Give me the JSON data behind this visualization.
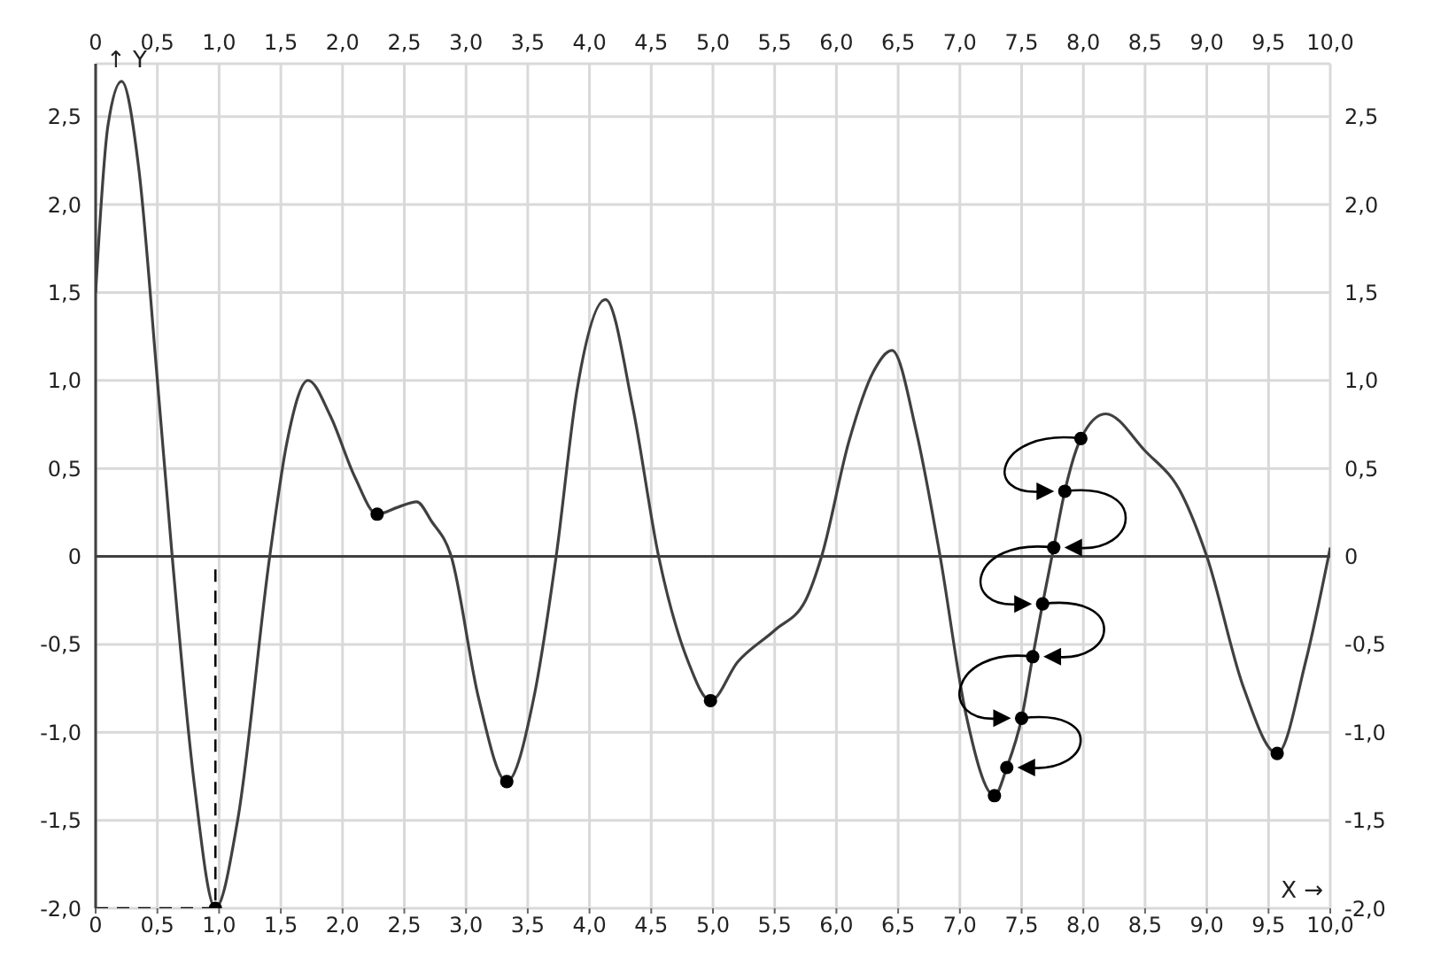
{
  "chart_data": {
    "type": "line",
    "xlabel": "X →",
    "ylabel": "↑ Y",
    "xlim": [
      0,
      10
    ],
    "ylim": [
      -2.0,
      2.8
    ],
    "xticks": [
      0,
      {
        "value": 0.5,
        "label": "0,5"
      },
      {
        "value": 1,
        "label": "1,0"
      },
      {
        "value": 1.5,
        "label": "1,5"
      },
      {
        "value": 2,
        "label": "2,0"
      },
      {
        "value": 2.5,
        "label": "2,5"
      },
      {
        "value": 3,
        "label": "3,0"
      },
      {
        "value": 3.5,
        "label": "3,5"
      },
      {
        "value": 4,
        "label": "4,0"
      },
      {
        "value": 4.5,
        "label": "4,5"
      },
      {
        "value": 5,
        "label": "5,0"
      },
      {
        "value": 5.5,
        "label": "5,5"
      },
      {
        "value": 6,
        "label": "6,0"
      },
      {
        "value": 6.5,
        "label": "6,5"
      },
      {
        "value": 7,
        "label": "7,0"
      },
      {
        "value": 7.5,
        "label": "7,5"
      },
      {
        "value": 8,
        "label": "8,0"
      },
      {
        "value": 8.5,
        "label": "8,5"
      },
      {
        "value": 9,
        "label": "9,0"
      },
      {
        "value": 9.5,
        "label": "9,5"
      },
      {
        "value": 10,
        "label": "10,0"
      }
    ],
    "x2lim": [
      0,
      10
    ],
    "x2ticks": [
      0,
      {
        "value": 0.5,
        "label": "0,5"
      },
      {
        "value": 1,
        "label": "1,0"
      },
      {
        "value": 1.5,
        "label": "1,5"
      },
      {
        "value": 2,
        "label": "2,0"
      },
      {
        "value": 2.5,
        "label": "2,5"
      },
      {
        "value": 3,
        "label": "3,0"
      },
      {
        "value": 3.5,
        "label": "3,5"
      },
      {
        "value": 4,
        "label": "4,0"
      },
      {
        "value": 4.5,
        "label": "4,5"
      },
      {
        "value": 5,
        "label": "5,0"
      },
      {
        "value": 5.5,
        "label": "5,5"
      },
      {
        "value": 6,
        "label": "6,0"
      },
      {
        "value": 6.5,
        "label": "6,5"
      },
      {
        "value": 7,
        "label": "7,0"
      },
      {
        "value": 7.5,
        "label": "7,5"
      },
      {
        "value": 8,
        "label": "8,0"
      },
      {
        "value": 8.5,
        "label": "8,5"
      },
      {
        "value": 9,
        "label": "9,0"
      },
      {
        "value": 9.5,
        "label": "9,5"
      },
      {
        "value": 10,
        "label": "10,0"
      }
    ],
    "yticks": [
      {
        "value": -2,
        "label": "-2,0"
      },
      {
        "value": -1.5,
        "label": "-1,5"
      },
      {
        "value": -1,
        "label": "-1,0"
      },
      {
        "value": -0.5,
        "label": "-0,5"
      },
      0,
      {
        "value": 0.5,
        "label": "0,5"
      },
      {
        "value": 1,
        "label": "1,0"
      },
      {
        "value": 1.5,
        "label": "1,5"
      },
      {
        "value": 2,
        "label": "2,0"
      },
      {
        "value": 2.5,
        "label": "2,5"
      }
    ],
    "y2lim": [
      -2.0,
      2.8
    ],
    "y2ticks": [
      {
        "value": -2,
        "label": "-2,0"
      },
      {
        "value": -1.5,
        "label": "-1,5"
      },
      {
        "value": -1,
        "label": "-1,0"
      },
      {
        "value": -0.5,
        "label": "-0,5"
      },
      0,
      {
        "value": 0.5,
        "label": "0,5"
      },
      {
        "value": 1,
        "label": "1,0"
      },
      {
        "value": 1.5,
        "label": "1,5"
      },
      {
        "value": 2,
        "label": "2,0"
      },
      {
        "value": 2.5,
        "label": "2,5"
      }
    ],
    "grid": true,
    "legend": false,
    "ref_lines": [
      {
        "axis": "y",
        "value": 0,
        "color": "#404040"
      }
    ],
    "series": [
      {
        "color": "#404040",
        "marker": "none",
        "line_style": "solid",
        "x": [
          0,
          0.1,
          0.21,
          0.35,
          0.5,
          0.62,
          0.8,
          0.97,
          1.15,
          1.41,
          1.55,
          1.72,
          1.9,
          2.1,
          2.28,
          2.45,
          2.6,
          2.72,
          2.88,
          3.1,
          3.33,
          3.55,
          3.73,
          3.9,
          4.13,
          4.35,
          4.56,
          4.8,
          4.98,
          5.2,
          5.5,
          5.75,
          5.88,
          6.1,
          6.3,
          6.45,
          6.65,
          6.84,
          7.05,
          7.28,
          7.38,
          7.5,
          7.59,
          7.67,
          7.76,
          7.85,
          7.98,
          8.18,
          8.5,
          8.8,
          9.0,
          9.3,
          9.57,
          9.8,
          10.0
        ],
        "values": [
          1.5,
          2.45,
          2.7,
          2.2,
          1.0,
          0,
          -1.3,
          -2.0,
          -1.5,
          0,
          0.65,
          1.0,
          0.8,
          0.45,
          0.24,
          0.28,
          0.31,
          0.2,
          0,
          -0.8,
          -1.28,
          -0.8,
          0,
          0.95,
          1.46,
          0.85,
          0,
          -0.6,
          -0.82,
          -0.6,
          -0.42,
          -0.25,
          0,
          0.65,
          1.05,
          1.17,
          0.7,
          0,
          -0.9,
          -1.36,
          -1.2,
          -0.92,
          -0.57,
          -0.27,
          0.05,
          0.37,
          0.67,
          0.81,
          0.6,
          0.35,
          0,
          -0.75,
          -1.12,
          -0.6,
          0.05
        ]
      },
      {
        "color": "#000000",
        "marker": "none",
        "line_style": "dashed",
        "x": [
          0,
          0.97,
          0.97
        ],
        "values": [
          -2.0,
          -2.0,
          -0.05
        ]
      },
      {
        "type": "scatter",
        "color": "#000000",
        "marker": "circle",
        "x": [
          0.97,
          2.28,
          3.33,
          4.98,
          7.28,
          9.57
        ],
        "values": [
          -2.0,
          0.24,
          -1.28,
          -0.82,
          -1.36,
          -1.12
        ]
      },
      {
        "type": "scatter",
        "color": "#000000",
        "marker": "circle",
        "x": [
          7.98,
          7.85,
          7.76,
          7.67,
          7.59,
          7.5,
          7.38
        ],
        "values": [
          0.67,
          0.37,
          0.05,
          -0.27,
          -0.57,
          -0.92,
          -1.2
        ]
      }
    ]
  }
}
